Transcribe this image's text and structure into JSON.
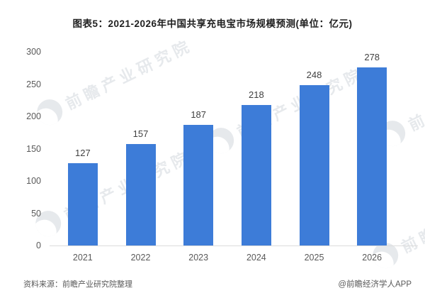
{
  "title": "图表5：2021-2026年中国共享充电宝市场规模预测(单位：亿元)",
  "chart_data": {
    "type": "bar",
    "title": "图表5：2021-2026年中国共享充电宝市场规模预测(单位：亿元)",
    "categories": [
      "2021",
      "2022",
      "2023",
      "2024",
      "2025",
      "2026"
    ],
    "values": [
      127,
      157,
      187,
      218,
      248,
      278
    ],
    "unit": "亿元",
    "xlabel": "",
    "ylabel": "",
    "ylim": [
      0,
      300
    ],
    "yticks": [
      0,
      50,
      100,
      150,
      200,
      250,
      300
    ],
    "grid": false,
    "legend": "none",
    "bar_color": "#3d7cd8",
    "value_label_color": "#404040",
    "axis_label_color": "#595959",
    "axis_line_color": "#dcdcdc"
  },
  "watermark": {
    "text": "前瞻产业研究院",
    "icon": "qianzhan-globe-icon"
  },
  "footer": {
    "source": "资料来源：前瞻产业研究院整理",
    "credit": "@前瞻经济学人APP"
  }
}
